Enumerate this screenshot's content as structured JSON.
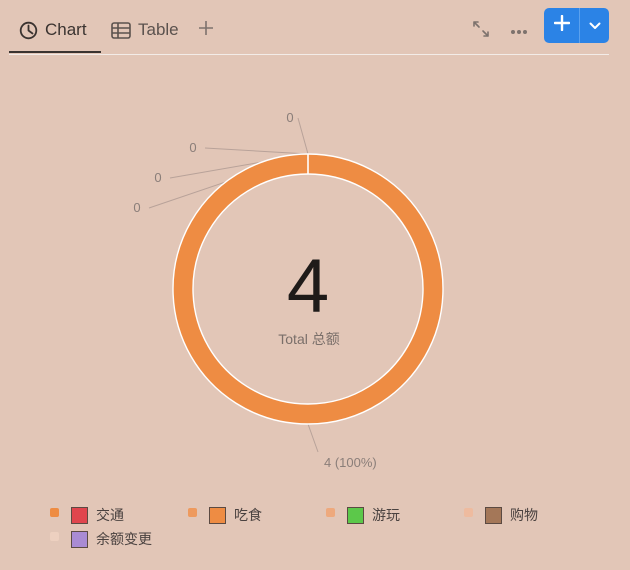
{
  "tabs": [
    {
      "label": "Chart",
      "icon": "pie-chart-icon",
      "active": true
    },
    {
      "label": "Table",
      "icon": "table-icon",
      "active": false
    }
  ],
  "toolbar": {
    "add_tab_icon": "plus-icon",
    "expand_icon": "expand-icon",
    "more_icon": "more-icon",
    "new_icon": "plus-icon",
    "dropdown_icon": "chevron-down-icon"
  },
  "chart_data": {
    "type": "pie",
    "variant": "donut",
    "center_value": "4",
    "center_label": "Total 总额",
    "slices": [
      {
        "name": "交通",
        "value": 0,
        "label": "0",
        "color": "#e0454d"
      },
      {
        "name": "吃食",
        "value": 4,
        "label": "4 (100%)",
        "color": "#ee8c43"
      },
      {
        "name": "游玩",
        "value": 0,
        "label": "0",
        "color": "#5cc84a"
      },
      {
        "name": "购物",
        "value": 0,
        "label": "0",
        "color": "#a47758"
      },
      {
        "name": "余额变更",
        "value": 0,
        "label": "0",
        "color": "#a98bd3"
      }
    ],
    "legend_dot_colors": [
      "#ee8c43",
      "#ee9a5e",
      "#eea97d",
      "#eebb9f",
      "#edd0c0"
    ],
    "legend_position": "bottom"
  }
}
